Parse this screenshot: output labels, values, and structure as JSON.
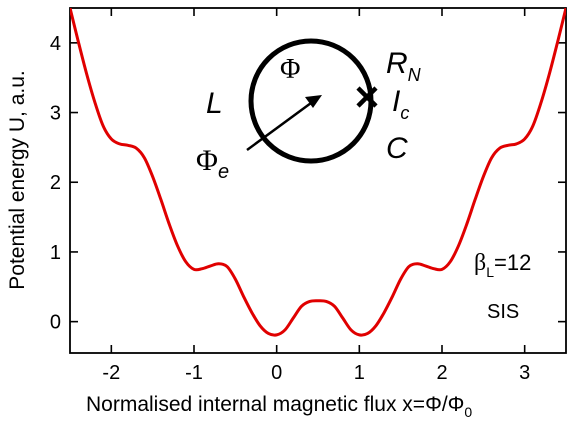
{
  "chart_data": {
    "type": "line",
    "xlabel": "Normalised internal magnetic flux x=Φ/Φ",
    "xlabel_sub": "0",
    "ylabel": "Potential energy U, a.u.",
    "xlim": [
      -2.5,
      3.5
    ],
    "ylim": [
      -0.45,
      4.5
    ],
    "xticks": [
      -2,
      -1,
      0,
      1,
      2,
      3
    ],
    "xtick_labels": [
      "-2",
      "-1",
      "0",
      "1",
      "2",
      "3"
    ],
    "yticks": [
      0,
      1,
      2,
      3,
      4
    ],
    "ytick_labels": [
      "0",
      "1",
      "2",
      "3",
      "4"
    ],
    "grid": false,
    "series": [
      {
        "color": "#e00000",
        "x": [
          -2.5,
          -2.4,
          -2.3,
          -2.2,
          -2.1,
          -2.0,
          -1.9,
          -1.8,
          -1.7,
          -1.6,
          -1.5,
          -1.4,
          -1.3,
          -1.2,
          -1.1,
          -1.0,
          -0.9,
          -0.8,
          -0.7,
          -0.6,
          -0.5,
          -0.4,
          -0.3,
          -0.2,
          -0.1,
          0.0,
          0.1,
          0.2,
          0.3,
          0.4,
          0.5,
          0.6,
          0.7,
          0.8,
          0.9,
          1.0,
          1.1,
          1.2,
          1.3,
          1.4,
          1.5,
          1.6,
          1.7,
          1.8,
          1.9,
          2.0,
          2.1,
          2.2,
          2.3,
          2.4,
          2.5,
          2.6,
          2.7,
          2.8,
          2.9,
          3.0,
          3.1,
          3.2,
          3.3,
          3.4,
          3.5
        ],
        "y": [
          4.5,
          4.02,
          3.56,
          3.15,
          2.81,
          2.62,
          2.55,
          2.53,
          2.49,
          2.35,
          2.08,
          1.75,
          1.4,
          1.09,
          0.86,
          0.75,
          0.76,
          0.8,
          0.83,
          0.79,
          0.61,
          0.36,
          0.13,
          -0.06,
          -0.17,
          -0.19,
          -0.12,
          0.05,
          0.22,
          0.29,
          0.3,
          0.29,
          0.22,
          0.05,
          -0.12,
          -0.19,
          -0.17,
          -0.06,
          0.13,
          0.36,
          0.61,
          0.79,
          0.83,
          0.8,
          0.76,
          0.75,
          0.86,
          1.09,
          1.4,
          1.75,
          2.08,
          2.35,
          2.49,
          2.53,
          2.55,
          2.62,
          2.81,
          3.15,
          3.56,
          4.02,
          4.5
        ]
      }
    ],
    "annotations": {
      "beta": "β",
      "beta_sub": "L",
      "beta_value": "=12",
      "junction_type": "SIS",
      "inset": {
        "L": "L",
        "Phi": "Φ",
        "Phi_e": "Φ",
        "Phi_e_sub": "e",
        "R": "R",
        "R_sub": "N",
        "I": "I",
        "I_sub": "c",
        "C": "C"
      }
    }
  }
}
